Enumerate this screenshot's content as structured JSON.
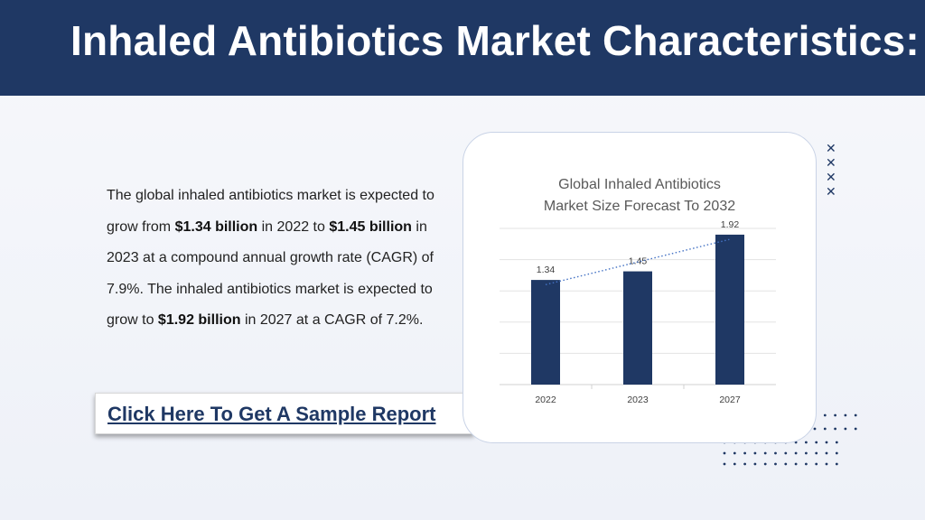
{
  "header": {
    "title": "Inhaled Antibiotics Market Characteristics:"
  },
  "body": {
    "p1": "The global inhaled antibiotics market is expected to grow from ",
    "v1": "$1.34 billion",
    "p2": " in 2022 to ",
    "v2": "$1.45 billion",
    "p3": " in 2023 at a compound annual growth rate (CAGR) of 7.9%. The inhaled antibiotics market is expected to grow to ",
    "v3": "$1.92 billion",
    "p4": " in 2027 at a CAGR of 7.2%."
  },
  "cta": {
    "label": "Click Here To Get A Sample Report"
  },
  "chart_data": {
    "type": "bar",
    "title_line1": "Global Inhaled Antibiotics",
    "title_line2": "Market Size Forecast To 2032",
    "categories": [
      "2022",
      "2023",
      "2027"
    ],
    "values": [
      1.34,
      1.45,
      1.92
    ],
    "value_labels": [
      "1.34",
      "1.45",
      "1.92"
    ],
    "trendline": "dotted",
    "ylim": [
      0,
      2.0
    ],
    "grid": true,
    "bar_color": "#1f3864",
    "trend_color": "#4472c4"
  },
  "decor": {
    "x_mark_icon": "✕",
    "accent_color": "#1f3864"
  }
}
